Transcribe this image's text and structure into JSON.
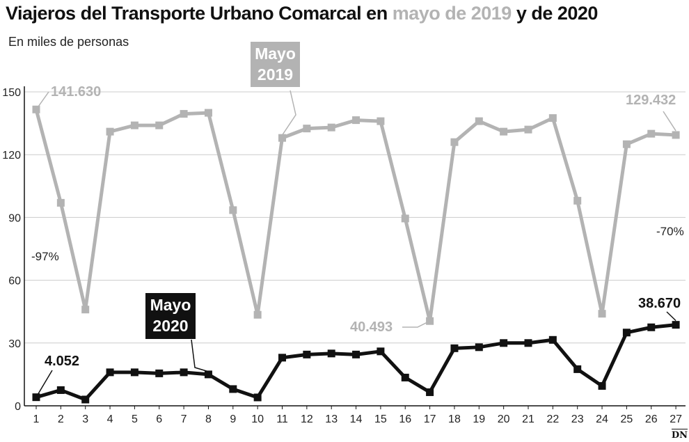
{
  "title": {
    "part1": "Viajeros del Transporte Urbano Comarcal en ",
    "part2": "mayo de 2019",
    "part3": " y de 2020"
  },
  "subtitle": "En miles de personas",
  "credit": "DN",
  "colors": {
    "series2019": "#b3b3b3",
    "series2020": "#111111",
    "grid": "#cccccc"
  },
  "chart_data": {
    "type": "line",
    "x": [
      1,
      2,
      3,
      4,
      5,
      6,
      7,
      8,
      9,
      10,
      11,
      12,
      13,
      14,
      15,
      16,
      17,
      18,
      19,
      20,
      21,
      22,
      23,
      24,
      25,
      26,
      27
    ],
    "yticks": [
      0,
      30,
      60,
      90,
      120,
      150
    ],
    "ylim": [
      0,
      150
    ],
    "grid": true,
    "series": [
      {
        "name": "Mayo 2019",
        "values": [
          141.6,
          97,
          46,
          131,
          134,
          134,
          139.5,
          140,
          93.5,
          43.5,
          128,
          132.5,
          133,
          136.5,
          136,
          89.5,
          40.5,
          126,
          136,
          131,
          132,
          137.5,
          98,
          44,
          125,
          130,
          129.4
        ]
      },
      {
        "name": "Mayo 2020",
        "values": [
          4.1,
          7.5,
          3,
          16,
          16,
          15.5,
          16,
          15,
          8,
          4,
          23,
          24.5,
          25,
          24.5,
          26,
          13.5,
          6.5,
          27.5,
          28,
          30,
          30,
          31.5,
          17.5,
          9.5,
          35,
          37.5,
          38.7
        ]
      }
    ],
    "annotations": {
      "label_2019": [
        "Mayo",
        "2019"
      ],
      "label_2020": [
        "Mayo",
        "2020"
      ],
      "first_2019": "141.630",
      "last_2019": "129.432",
      "min_2019": "40.493",
      "first_2020": "4.052",
      "last_2020": "38.670",
      "pct_left": "-97%",
      "pct_right": "-70%"
    }
  }
}
